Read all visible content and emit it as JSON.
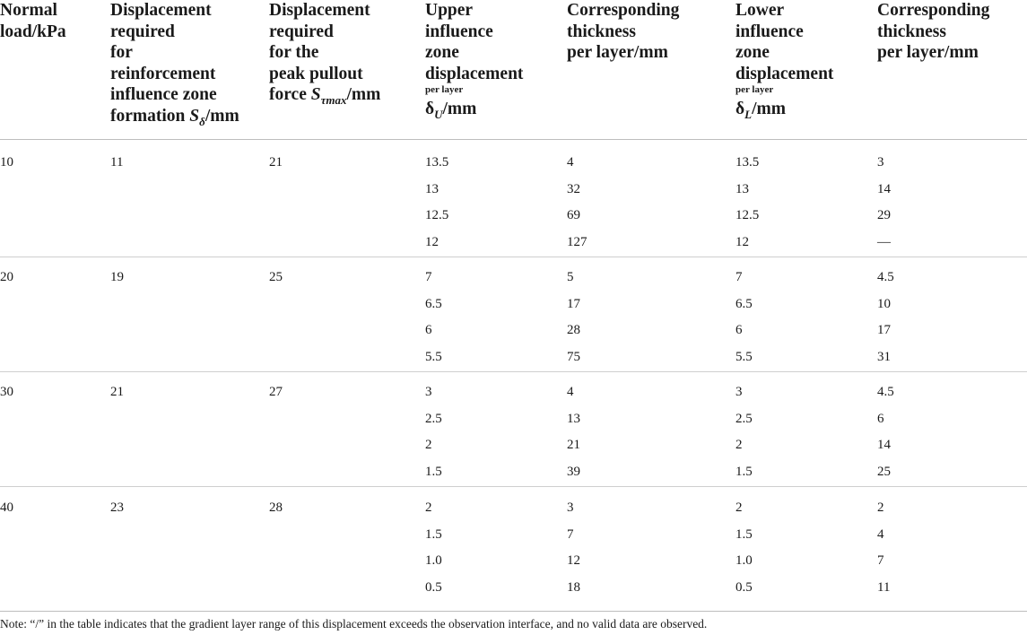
{
  "headers": {
    "col1": [
      "Normal",
      "load/kPa"
    ],
    "col2": [
      "Displacement",
      "required",
      "for",
      "reinforcement",
      "influence zone"
    ],
    "col2_last_prefix": "formation ",
    "col2_sym": "S",
    "col2_sub": "δ",
    "col2_suffix": "/mm",
    "col3": [
      "Displacement",
      "required",
      "for the",
      "peak pullout"
    ],
    "col3_last_prefix": "force ",
    "col3_sym": "S",
    "col3_sub": "τmax",
    "col3_suffix": "/mm",
    "col4": [
      "Upper",
      "influence",
      "zone",
      "displacement"
    ],
    "col4_small": "per layer",
    "col4_sym": "δ",
    "col4_sub": "U",
    "col4_suffix": "/mm",
    "col5": [
      "Corresponding",
      "thickness",
      "per layer/mm"
    ],
    "col6": [
      "Lower",
      "influence",
      "zone",
      "displacement"
    ],
    "col6_small": "per layer",
    "col6_sym": "δ",
    "col6_sub": "L",
    "col6_suffix": "/mm",
    "col7": [
      "Corresponding",
      "thickness",
      "per layer/mm"
    ]
  },
  "rows": [
    {
      "load": "10",
      "s_delta": "11",
      "s_tmax": "21",
      "upper": [
        "13.5",
        "13",
        "12.5",
        "12"
      ],
      "upper_thk": [
        "4",
        "32",
        "69",
        "127"
      ],
      "lower": [
        "13.5",
        "13",
        "12.5",
        "12"
      ],
      "lower_thk": [
        "3",
        "14",
        "29",
        "—"
      ]
    },
    {
      "load": "20",
      "s_delta": "19",
      "s_tmax": "25",
      "upper": [
        "7",
        "6.5",
        "6",
        "5.5"
      ],
      "upper_thk": [
        "5",
        "17",
        "28",
        "75"
      ],
      "lower": [
        "7",
        "6.5",
        "6",
        "5.5"
      ],
      "lower_thk": [
        "4.5",
        "10",
        "17",
        "31"
      ]
    },
    {
      "load": "30",
      "s_delta": "21",
      "s_tmax": "27",
      "upper": [
        "3",
        "2.5",
        "2",
        "1.5"
      ],
      "upper_thk": [
        "4",
        "13",
        "21",
        "39"
      ],
      "lower": [
        "3",
        "2.5",
        "2",
        "1.5"
      ],
      "lower_thk": [
        "4.5",
        "6",
        "14",
        "25"
      ]
    },
    {
      "load": "40",
      "s_delta": "23",
      "s_tmax": "28",
      "upper": [
        "2",
        "1.5",
        "1.0",
        "0.5"
      ],
      "upper_thk": [
        "3",
        "7",
        "12",
        "18"
      ],
      "lower": [
        "2",
        "1.5",
        "1.0",
        "0.5"
      ],
      "lower_thk": [
        "2",
        "4",
        "7",
        "11"
      ]
    }
  ],
  "note": "Note: “/” in the table indicates that the gradient layer range of this displacement exceeds the observation interface, and no valid data are observed."
}
